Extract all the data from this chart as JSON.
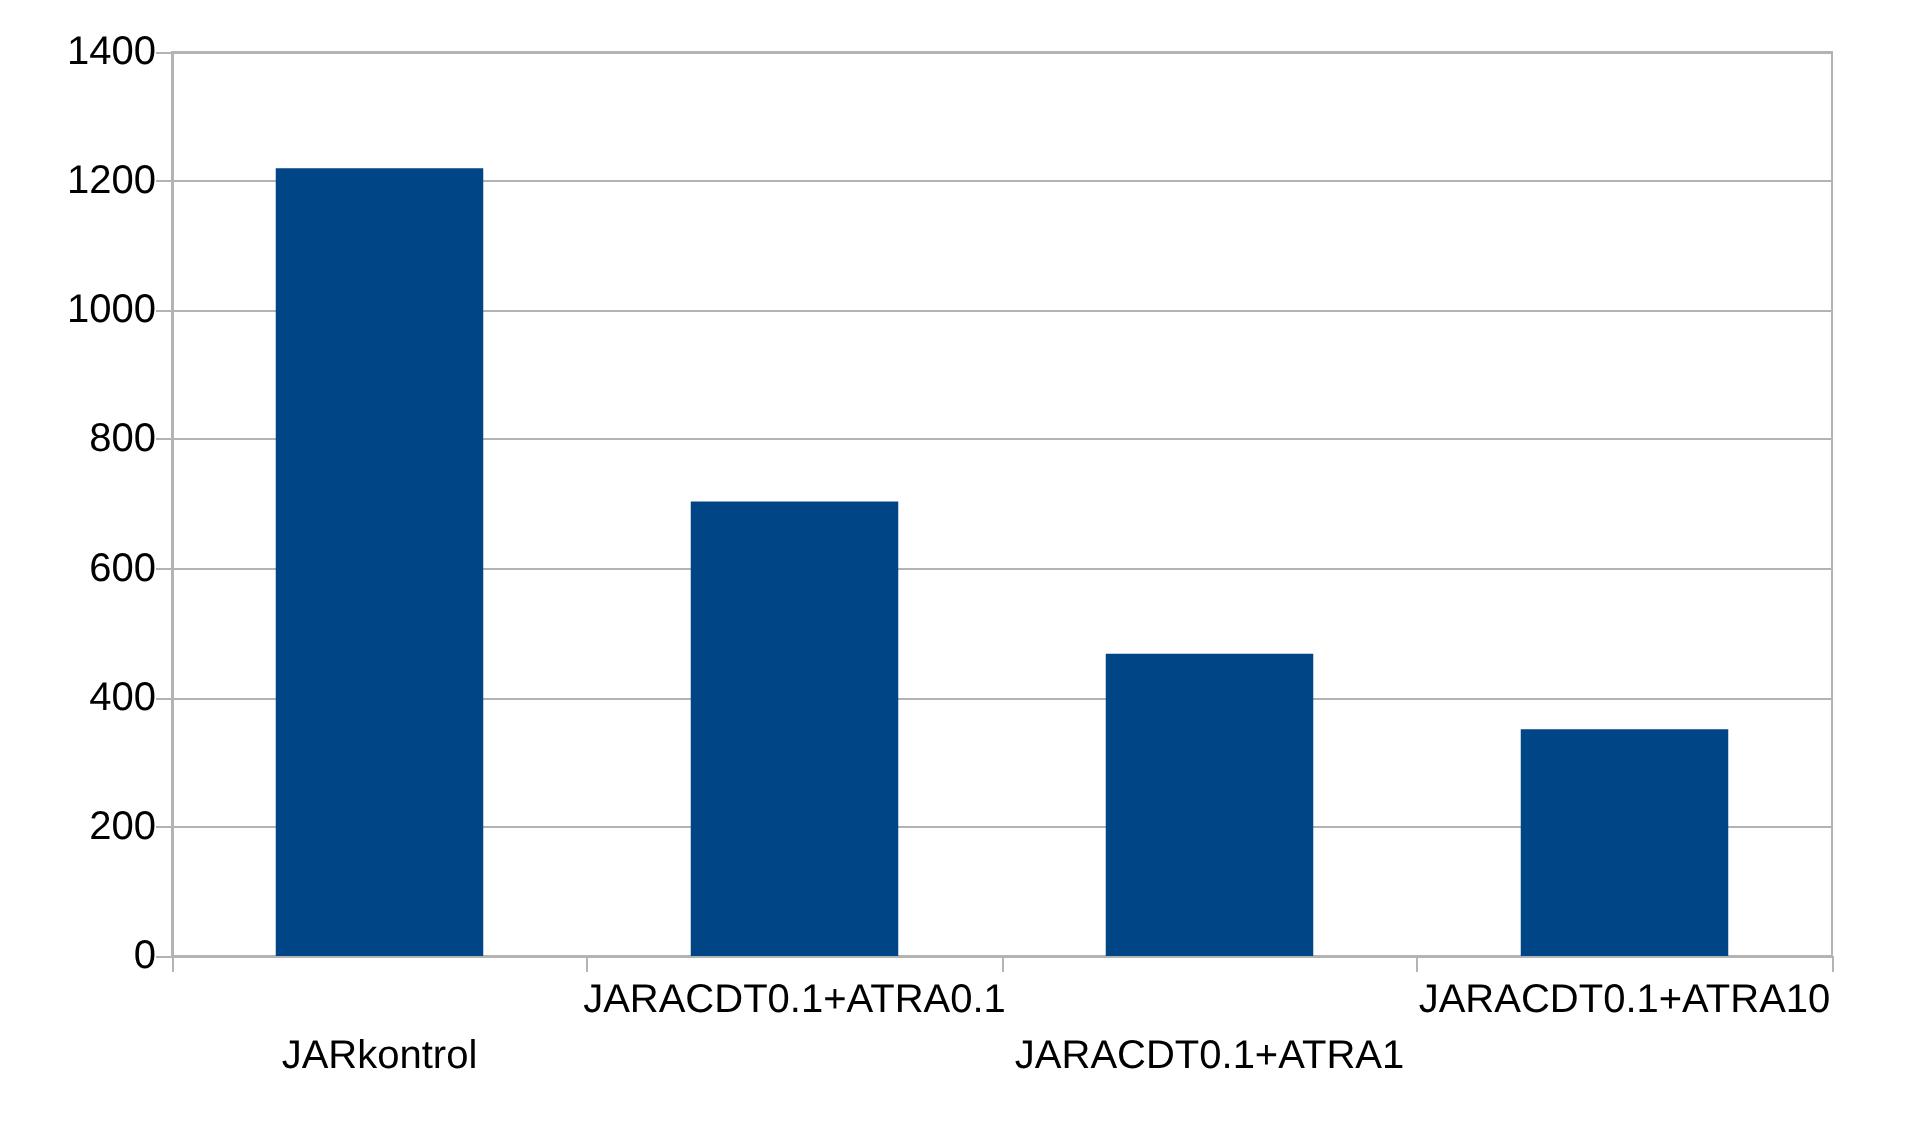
{
  "chart_data": {
    "type": "bar",
    "categories": [
      "JARkontrol",
      "JARACDT0.1+ATRA0.1",
      "JARACDT0.1+ATRA1",
      "JARACDT0.1+ATRA10"
    ],
    "values": [
      1220,
      704,
      468,
      351
    ],
    "color": "#004586",
    "ylim": [
      0,
      1400
    ],
    "yticks": [
      0,
      200,
      400,
      600,
      800,
      1000,
      1200,
      1400
    ],
    "grid": "y"
  }
}
